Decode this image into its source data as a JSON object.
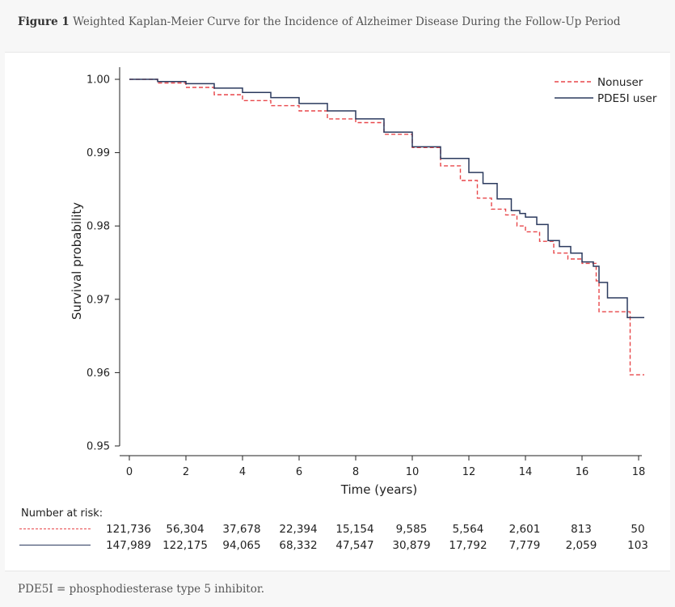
{
  "figure": {
    "label": "Figure 1",
    "title": "Weighted Kaplan-Meier Curve for the Incidence of Alzheimer Disease During the Follow-Up Period",
    "footnote": "PDE5I = phosphodiesterase type 5 inhibitor."
  },
  "chart_data": {
    "type": "line",
    "step": true,
    "title": "",
    "xlabel": "Time (years)",
    "ylabel": "Survival probability",
    "xlim": [
      0,
      18
    ],
    "ylim": [
      0.95,
      1.0
    ],
    "xticks": [
      0,
      2,
      4,
      6,
      8,
      10,
      12,
      14,
      16,
      18
    ],
    "yticks": [
      0.95,
      0.96,
      0.97,
      0.98,
      0.99,
      1.0
    ],
    "ytick_labels": [
      "0.95",
      "0.96",
      "0.97",
      "0.98",
      "0.99",
      "1.00"
    ],
    "legend_position": "top-right",
    "series": [
      {
        "name": "Nonuser",
        "color": "#e8474a",
        "style": "dashed",
        "x": [
          0,
          1,
          2,
          3,
          4,
          5,
          6,
          7,
          8,
          9,
          10,
          11,
          11.7,
          12.3,
          12.8,
          13.3,
          13.7,
          14.0,
          14.5,
          15.0,
          15.5,
          16.0,
          16.3,
          16.5,
          16.6,
          17.2,
          17.6,
          17.7,
          18.2
        ],
        "y": [
          1.0,
          0.9995,
          0.9989,
          0.9979,
          0.9971,
          0.9964,
          0.9957,
          0.9946,
          0.9941,
          0.9925,
          0.9907,
          0.9882,
          0.9862,
          0.9838,
          0.9823,
          0.9815,
          0.98,
          0.9792,
          0.9779,
          0.9763,
          0.9755,
          0.9749,
          0.9749,
          0.9725,
          0.9683,
          0.9683,
          0.9683,
          0.9597,
          0.9597
        ]
      },
      {
        "name": "PDE5I user",
        "color": "#2b3a5e",
        "style": "solid",
        "x": [
          0,
          1,
          2,
          3,
          4,
          5,
          6,
          7,
          8,
          9,
          10,
          11,
          12,
          12.5,
          13,
          13.5,
          13.8,
          14.0,
          14.4,
          14.8,
          15.2,
          15.6,
          16.0,
          16.4,
          16.6,
          16.9,
          17.3,
          17.6,
          18.2
        ],
        "y": [
          1.0,
          0.9997,
          0.9994,
          0.9988,
          0.9982,
          0.9975,
          0.9967,
          0.9957,
          0.9946,
          0.9928,
          0.9908,
          0.9892,
          0.9873,
          0.9858,
          0.9837,
          0.9821,
          0.9817,
          0.9812,
          0.9802,
          0.978,
          0.9772,
          0.9763,
          0.9751,
          0.9745,
          0.9723,
          0.9702,
          0.9702,
          0.9675,
          0.9675
        ]
      }
    ]
  },
  "risk_table": {
    "title": "Number at risk:",
    "times": [
      0,
      2,
      4,
      6,
      8,
      10,
      12,
      14,
      16,
      18
    ],
    "rows": [
      {
        "name": "Nonuser",
        "values": [
          "121,736",
          "56,304",
          "37,678",
          "22,394",
          "15,154",
          "9,585",
          "5,564",
          "2,601",
          "813",
          "50"
        ]
      },
      {
        "name": "PDE5I user",
        "values": [
          "147,989",
          "122,175",
          "94,065",
          "68,332",
          "47,547",
          "30,879",
          "17,792",
          "7,779",
          "2,059",
          "103"
        ]
      }
    ]
  }
}
